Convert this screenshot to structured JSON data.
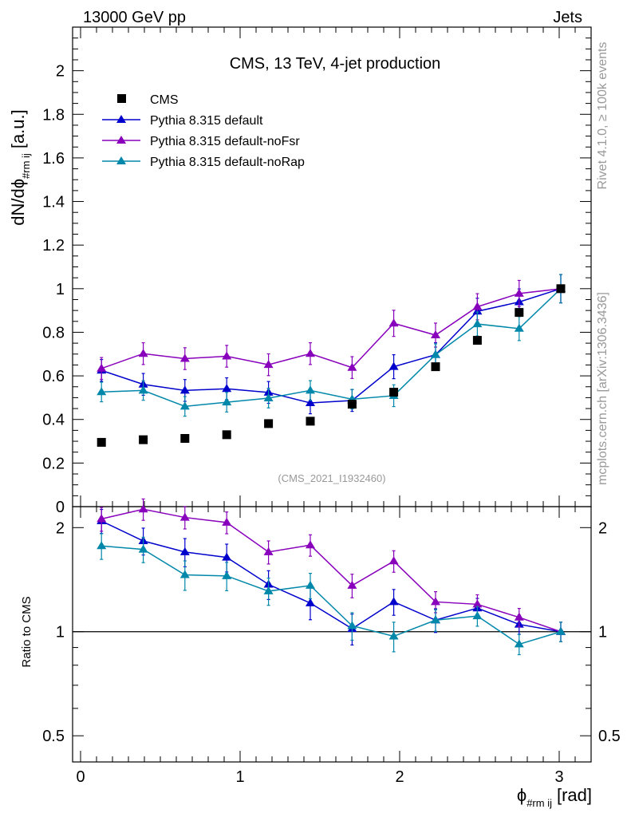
{
  "header": {
    "left": "13000 GeV pp",
    "right": "Jets"
  },
  "side": {
    "rivet": "Rivet 4.1.0, ≥ 100k events",
    "mcplots": "mcplots.cern.ch [arXiv:1306.3436]"
  },
  "watermark": "(CMS_2021_I1932460)",
  "chart_data": {
    "type": "scatter",
    "title": "CMS, 13 TeV, 4-jet production",
    "xlabel": "ϕ",
    "xlabel_sub": "#rm ij",
    "xlabel_unit": "[rad]",
    "ylabel_main": "dN/dϕ",
    "ylabel_sub": "#rm ij",
    "ylabel_unit": "[a.u.]",
    "ylabel_ratio": "Ratio to CMS",
    "xlim": [
      -0.05,
      3.2
    ],
    "ylim_main": [
      0,
      2.2
    ],
    "ylim_ratio": [
      0.42,
      2.3
    ],
    "x_ticks": [
      "0",
      "1",
      "2",
      "3"
    ],
    "y_ticks_main": [
      "0",
      "0.2",
      "0.4",
      "0.6",
      "0.8",
      "1",
      "1.2",
      "1.4",
      "1.6",
      "1.8",
      "2"
    ],
    "y_ticks_ratio": [
      "0.5",
      "1",
      "2"
    ],
    "x": [
      0.131,
      0.393,
      0.654,
      0.916,
      1.178,
      1.44,
      1.702,
      1.963,
      2.225,
      2.487,
      2.749,
      3.01
    ],
    "data": {
      "name": "CMS",
      "color": "#000000",
      "values": [
        0.295,
        0.307,
        0.313,
        0.33,
        0.381,
        0.392,
        0.47,
        0.525,
        0.642,
        0.763,
        0.891,
        1.0
      ]
    },
    "series": [
      {
        "name": "Pythia 8.315 default",
        "color": "#0000cc",
        "values": [
          0.625,
          0.561,
          0.533,
          0.541,
          0.524,
          0.476,
          0.487,
          0.642,
          0.697,
          0.896,
          0.939,
          1.0
        ],
        "errors": [
          0.05,
          0.05,
          0.05,
          0.05,
          0.05,
          0.05,
          0.05,
          0.055,
          0.055,
          0.06,
          0.06,
          0.065
        ],
        "ratio": [
          2.09,
          1.83,
          1.7,
          1.64,
          1.37,
          1.21,
          1.02,
          1.22,
          1.08,
          1.17,
          1.05,
          1.0
        ]
      },
      {
        "name": "Pythia 8.315 default-noFsr",
        "color": "#8800bb",
        "values": [
          0.634,
          0.702,
          0.679,
          0.69,
          0.651,
          0.702,
          0.638,
          0.841,
          0.787,
          0.917,
          0.978,
          1.0
        ],
        "errors": [
          0.05,
          0.05,
          0.05,
          0.05,
          0.05,
          0.05,
          0.05,
          0.06,
          0.055,
          0.06,
          0.06,
          0.065
        ],
        "ratio": [
          2.12,
          2.26,
          2.14,
          2.07,
          1.7,
          1.78,
          1.36,
          1.6,
          1.22,
          1.2,
          1.1,
          1.0
        ]
      },
      {
        "name": "Pythia 8.315 default-noRap",
        "color": "#0088aa",
        "values": [
          0.526,
          0.533,
          0.46,
          0.479,
          0.498,
          0.533,
          0.493,
          0.509,
          0.697,
          0.838,
          0.817,
          1.0
        ],
        "errors": [
          0.045,
          0.045,
          0.045,
          0.045,
          0.045,
          0.045,
          0.045,
          0.05,
          0.05,
          0.055,
          0.055,
          0.065
        ],
        "ratio": [
          1.77,
          1.73,
          1.46,
          1.45,
          1.31,
          1.36,
          1.04,
          0.97,
          1.08,
          1.11,
          0.92,
          1.0
        ]
      }
    ]
  }
}
